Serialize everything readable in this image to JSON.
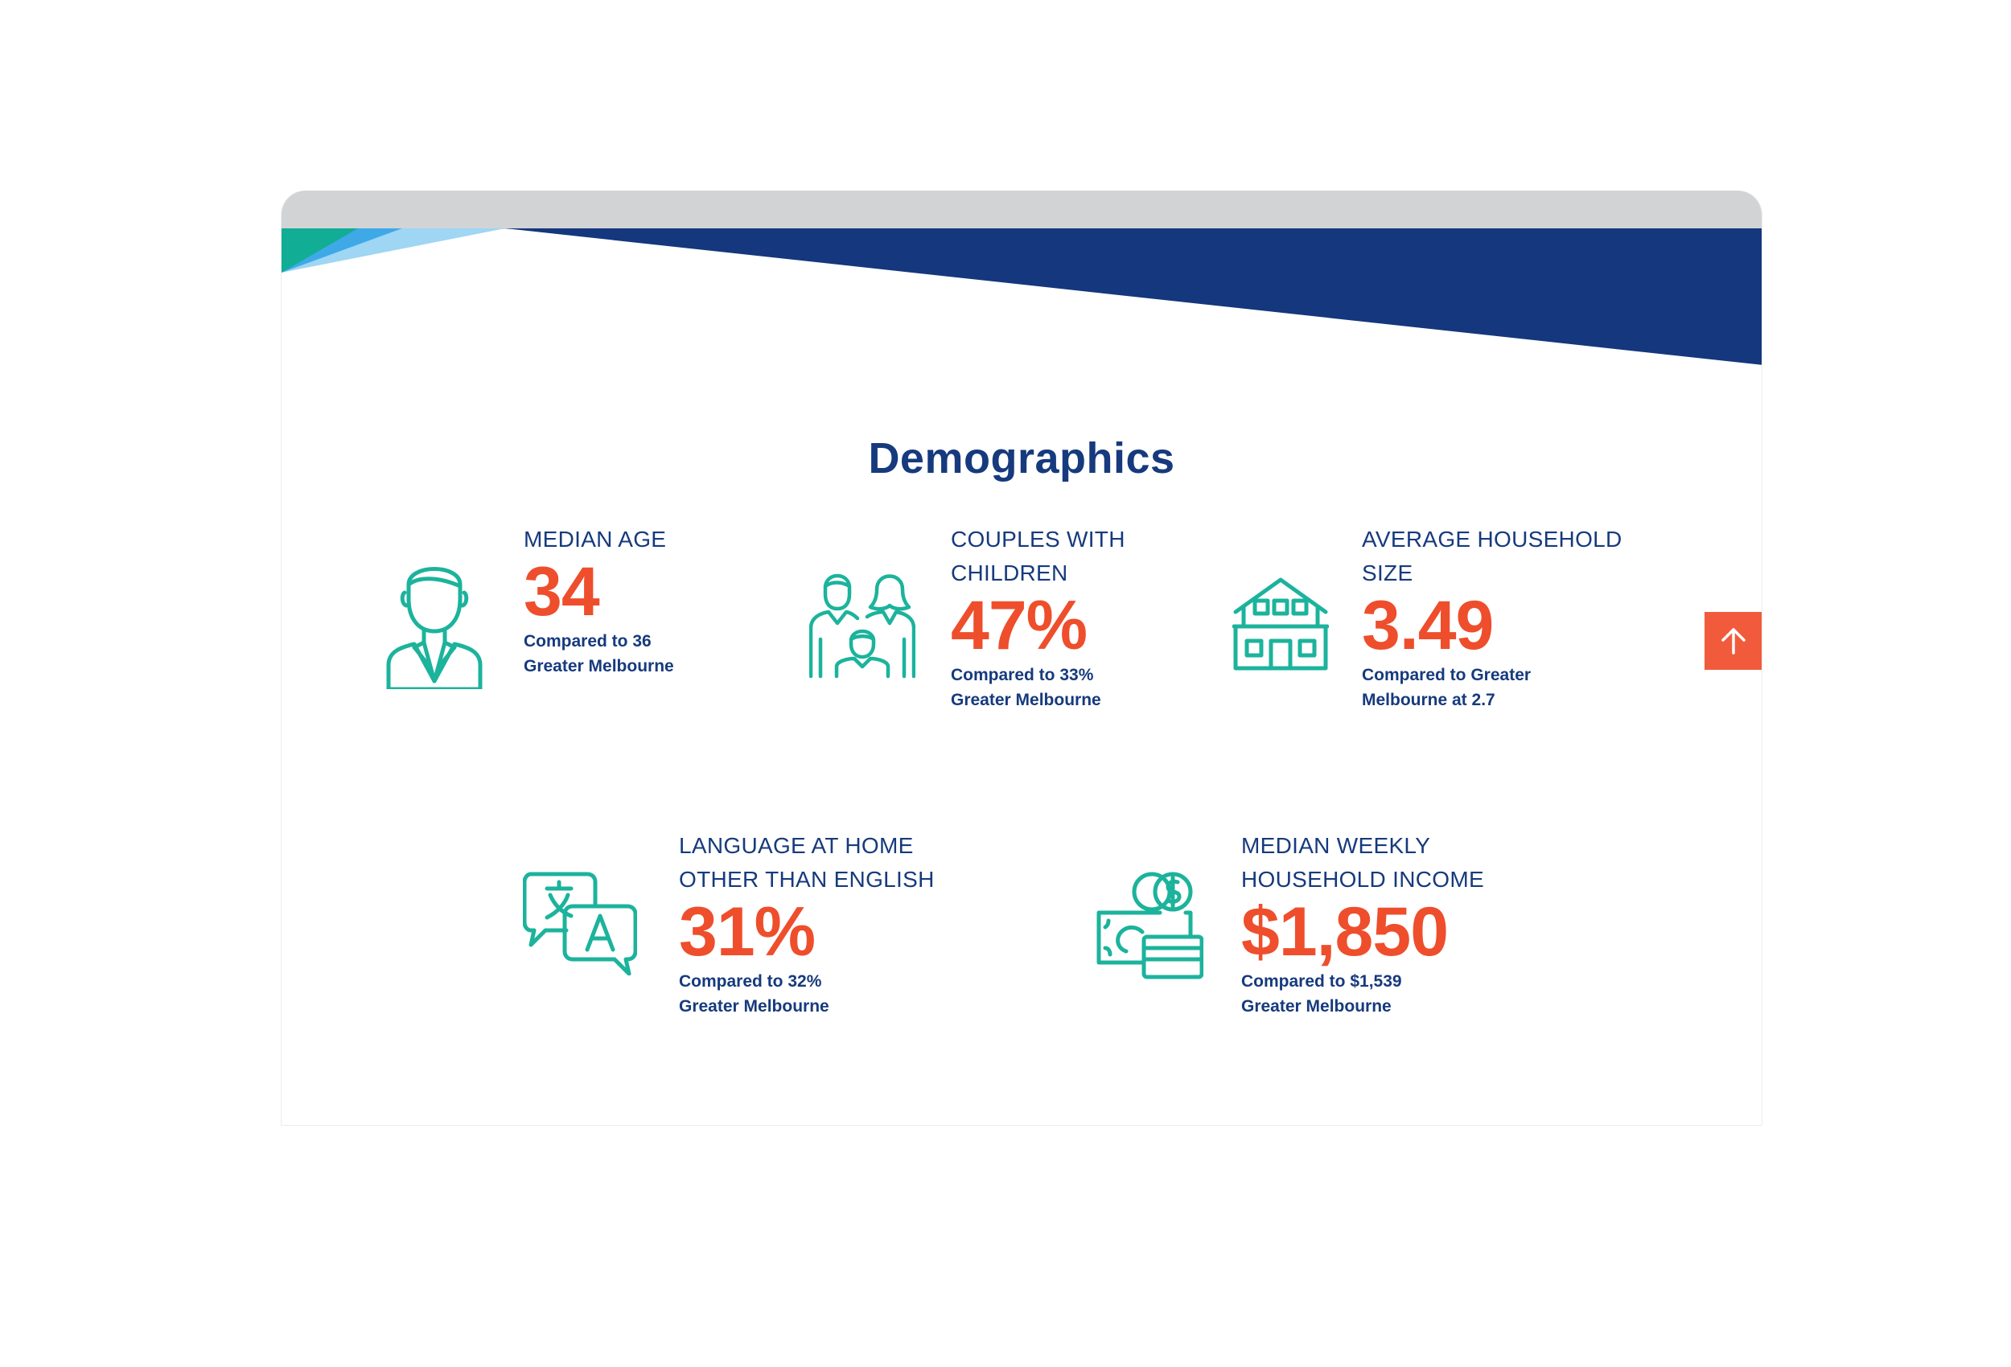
{
  "section": {
    "title": "Demographics"
  },
  "stats": [
    {
      "label": "MEDIAN AGE",
      "value": "34",
      "compare": "Compared to 36\nGreater Melbourne",
      "icon": "person-icon"
    },
    {
      "label": "COUPLES WITH\nCHILDREN",
      "value": "47%",
      "compare": "Compared to 33%\nGreater Melbourne",
      "icon": "family-icon"
    },
    {
      "label": "AVERAGE HOUSEHOLD\nSIZE",
      "value": "3.49",
      "compare": "Compared to Greater\nMelbourne at 2.7",
      "icon": "house-icon"
    },
    {
      "label": "LANGUAGE AT HOME\nOTHER THAN ENGLISH",
      "value": "31%",
      "compare": "Compared to 32%\nGreater Melbourne",
      "icon": "translate-icon"
    },
    {
      "label": "MEDIAN WEEKLY\nHOUSEHOLD INCOME",
      "value": "$1,850",
      "compare": "Compared to $1,539\nGreater Melbourne",
      "icon": "money-icon"
    }
  ],
  "scroll_top": {
    "icon": "arrow-up-icon"
  },
  "colors": {
    "navy": "#163a7d",
    "orange": "#ee4e2c",
    "teal": "#1cb39c",
    "banner_navy": "#14377d",
    "banner_teal": "#11ad95",
    "banner_blue": "#3fa9e8",
    "banner_light_blue": "#9fd6f3",
    "chrome_gray": "#d2d3d5"
  }
}
